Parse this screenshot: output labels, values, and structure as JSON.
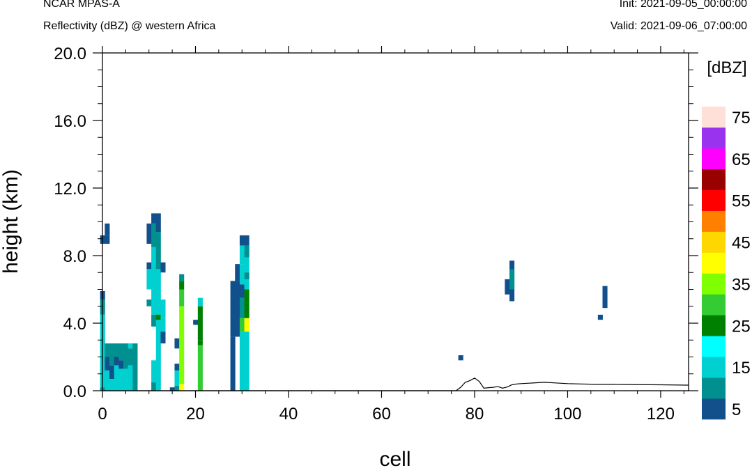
{
  "header": {
    "left_title": "NCAR MPAS-A",
    "left_subtitle": "Reflectivity (dBZ) @ western Africa",
    "right_init": "Init: 2021-09-05_00:00:00",
    "right_valid": "Valid: 2021-09-06_07:00:00"
  },
  "chart_data": {
    "type": "heatmap",
    "xlabel": "cell",
    "ylabel": "height (km)",
    "xlim": [
      0,
      126
    ],
    "ylim": [
      0,
      20
    ],
    "x_ticks": [
      "0",
      "20",
      "40",
      "60",
      "80",
      "100",
      "120"
    ],
    "y_ticks": [
      "0.0",
      "4.0",
      "8.0",
      "12.0",
      "16.0",
      "20.0"
    ],
    "colorbar": {
      "title": "[dBZ]",
      "levels": [
        5,
        10,
        15,
        20,
        25,
        30,
        35,
        40,
        45,
        50,
        55,
        60,
        65,
        70,
        75
      ],
      "labels": [
        "5",
        "15",
        "25",
        "35",
        "45",
        "55",
        "65",
        "75"
      ],
      "colors": [
        "#12508c",
        "#009090",
        "#00d0d0",
        "#00ffff",
        "#008000",
        "#33cc33",
        "#80ff00",
        "#ffff00",
        "#ffd700",
        "#ff8000",
        "#ff0000",
        "#990000",
        "#ff00ff",
        "#9933ee",
        "#ffe0d8"
      ]
    },
    "cells": [
      [
        0,
        8.7,
        9.2,
        5
      ],
      [
        1,
        8.7,
        9.2,
        5
      ],
      [
        1,
        9.2,
        9.9,
        5
      ],
      [
        0,
        5.4,
        5.9,
        5
      ],
      [
        0,
        4.5,
        5.4,
        10
      ],
      [
        0,
        0.2,
        4.5,
        15
      ],
      [
        0,
        0,
        0.2,
        10
      ],
      [
        1,
        2.0,
        2.8,
        10
      ],
      [
        1,
        1.2,
        2.0,
        5
      ],
      [
        1,
        0,
        1.2,
        15
      ],
      [
        2,
        1.5,
        2.8,
        10
      ],
      [
        2,
        0.7,
        1.5,
        5
      ],
      [
        2,
        0,
        0.7,
        15
      ],
      [
        3,
        2.0,
        2.8,
        10
      ],
      [
        3,
        1.5,
        2.0,
        5
      ],
      [
        3,
        0,
        1.5,
        15
      ],
      [
        4,
        1.8,
        2.8,
        10
      ],
      [
        4,
        1.3,
        1.8,
        5
      ],
      [
        4,
        0,
        1.3,
        15
      ],
      [
        5,
        1.3,
        2.8,
        10
      ],
      [
        5,
        0,
        1.3,
        15
      ],
      [
        6,
        2.5,
        2.8,
        15
      ],
      [
        6,
        1.5,
        2.5,
        10
      ],
      [
        6,
        0,
        1.5,
        15
      ],
      [
        7,
        0,
        2.8,
        10
      ],
      [
        10,
        8.7,
        9.9,
        5
      ],
      [
        10,
        7.2,
        7.6,
        5
      ],
      [
        10,
        6.0,
        7.2,
        15
      ],
      [
        10,
        5.0,
        5.4,
        10
      ],
      [
        11,
        9.9,
        10.5,
        5
      ],
      [
        11,
        8.5,
        9.9,
        10
      ],
      [
        11,
        4.5,
        8.5,
        15
      ],
      [
        12,
        9.4,
        10.5,
        5
      ],
      [
        12,
        7.2,
        9.4,
        10
      ],
      [
        12,
        4.2,
        7.2,
        15
      ],
      [
        11,
        0,
        0.5,
        10
      ],
      [
        11,
        0.5,
        1.8,
        15
      ],
      [
        11,
        3.8,
        4.5,
        10
      ],
      [
        12,
        0,
        4.2,
        15
      ],
      [
        12,
        4.2,
        4.5,
        25
      ],
      [
        13,
        7.0,
        7.6,
        5
      ],
      [
        13,
        4.3,
        5.4,
        15
      ],
      [
        13,
        2.8,
        3.5,
        5
      ],
      [
        13,
        3.5,
        4.3,
        15
      ],
      [
        15,
        0,
        0.2,
        5
      ],
      [
        16,
        0.3,
        1.2,
        15
      ],
      [
        16,
        1.2,
        1.6,
        5
      ],
      [
        16,
        2.5,
        3.1,
        5
      ],
      [
        16,
        0,
        0.3,
        10
      ],
      [
        17,
        0,
        0.4,
        40
      ],
      [
        17,
        0.4,
        5.0,
        35
      ],
      [
        17,
        5.0,
        6.0,
        30
      ],
      [
        17,
        6.0,
        6.5,
        25
      ],
      [
        17,
        6.5,
        6.9,
        10
      ],
      [
        20,
        3.9,
        4.2,
        5
      ],
      [
        21,
        0,
        2.7,
        30
      ],
      [
        21,
        2.7,
        3.0,
        25
      ],
      [
        21,
        3.0,
        5.0,
        25
      ],
      [
        21,
        5.0,
        5.5,
        15
      ],
      [
        28,
        3.2,
        6.5,
        5
      ],
      [
        28,
        0,
        3.2,
        5
      ],
      [
        29,
        3.2,
        6.5,
        5
      ],
      [
        29,
        6.5,
        7.5,
        5
      ],
      [
        29,
        3.2,
        5.0,
        5
      ],
      [
        30,
        0,
        3.5,
        15
      ],
      [
        30,
        3.5,
        4.3,
        30
      ],
      [
        30,
        4.3,
        5.5,
        10
      ],
      [
        30,
        5.5,
        6.3,
        5
      ],
      [
        30,
        6.3,
        7.5,
        15
      ],
      [
        30,
        7.5,
        8.6,
        15
      ],
      [
        31,
        0,
        3.5,
        15
      ],
      [
        31,
        3.5,
        4.3,
        40
      ],
      [
        31,
        4.3,
        6.0,
        25
      ],
      [
        31,
        6.0,
        6.9,
        15
      ],
      [
        31,
        6.9,
        8.6,
        15
      ],
      [
        31,
        8.6,
        9.2,
        5
      ],
      [
        30,
        8.6,
        9.2,
        5
      ],
      [
        31,
        7.9,
        8.6,
        10
      ],
      [
        31,
        6.6,
        7.0,
        10
      ],
      [
        77,
        1.8,
        2.1,
        5
      ],
      [
        87,
        5.7,
        6.6,
        5
      ],
      [
        88,
        5.3,
        7.7,
        5
      ],
      [
        88,
        6.0,
        7.2,
        10
      ],
      [
        107,
        4.2,
        4.5,
        5
      ],
      [
        108,
        4.9,
        6.2,
        5
      ]
    ],
    "terrain_km": [
      [
        0,
        0
      ],
      [
        76,
        0
      ],
      [
        77,
        0.2
      ],
      [
        78,
        0.5
      ],
      [
        79,
        0.6
      ],
      [
        80,
        0.75
      ],
      [
        81,
        0.55
      ],
      [
        82,
        0.15
      ],
      [
        83,
        0.18
      ],
      [
        84,
        0.2
      ],
      [
        85,
        0.25
      ],
      [
        86,
        0.15
      ],
      [
        87,
        0.22
      ],
      [
        88,
        0.35
      ],
      [
        89,
        0.4
      ],
      [
        90,
        0.42
      ],
      [
        92,
        0.45
      ],
      [
        95,
        0.5
      ],
      [
        98,
        0.45
      ],
      [
        100,
        0.42
      ],
      [
        103,
        0.4
      ],
      [
        106,
        0.38
      ],
      [
        110,
        0.38
      ],
      [
        115,
        0.36
      ],
      [
        120,
        0.35
      ],
      [
        126,
        0.33
      ]
    ]
  }
}
